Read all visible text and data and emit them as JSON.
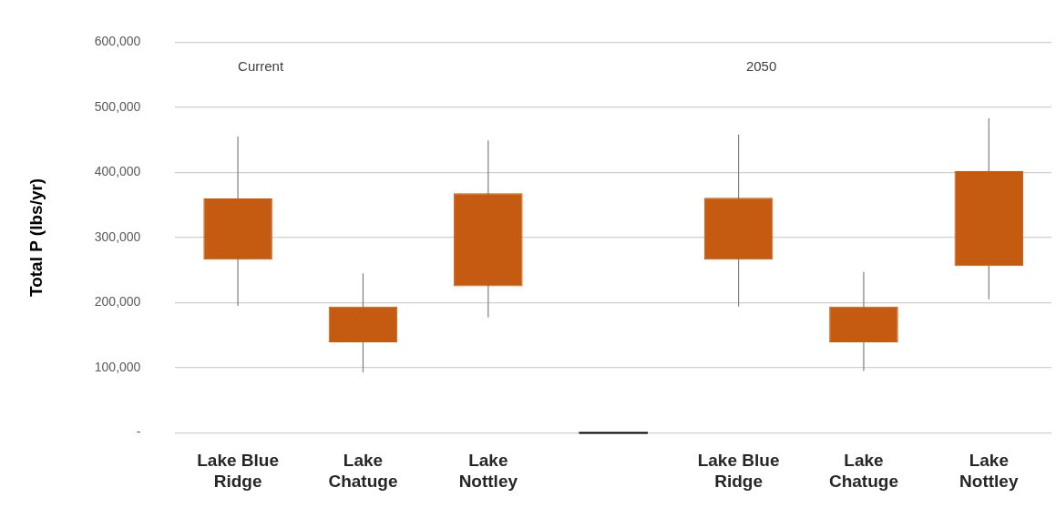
{
  "chart_data": {
    "type": "candlestick",
    "ylabel": "Total P (lbs/yr)",
    "categories": [
      "Lake Blue Ridge",
      "Lake Chatuge",
      "Lake Nottley",
      null,
      "Lake Blue Ridge",
      "Lake Chatuge",
      "Lake Nottley"
    ],
    "ohlc": [
      [
        266000,
        455000,
        195000,
        360000
      ],
      [
        139000,
        245000,
        93000,
        194000
      ],
      [
        225000,
        449000,
        177000,
        368000
      ],
      [
        0,
        0,
        0,
        0
      ],
      [
        266000,
        458000,
        194000,
        361000
      ],
      [
        139000,
        247000,
        95000,
        194000
      ],
      [
        256000,
        483000,
        205000,
        402000
      ]
    ],
    "colors": [
      "#c55a11",
      "#c55a11",
      "#c55a11",
      "#000000",
      "#c55a11",
      "#c55a11",
      "#c55a11"
    ],
    "ylim": [
      0,
      600000
    ],
    "yticks": [
      {
        "value": 0,
        "label": "-"
      },
      {
        "value": 100000,
        "label": "100,000"
      },
      {
        "value": 200000,
        "label": "200,000"
      },
      {
        "value": 300000,
        "label": "300,000"
      },
      {
        "value": 400000,
        "label": "400,000"
      },
      {
        "value": 500000,
        "label": "500,000"
      },
      {
        "value": 600000,
        "label": "600,000"
      }
    ],
    "grid": "y",
    "annotations": [
      "Current",
      "2050"
    ]
  }
}
